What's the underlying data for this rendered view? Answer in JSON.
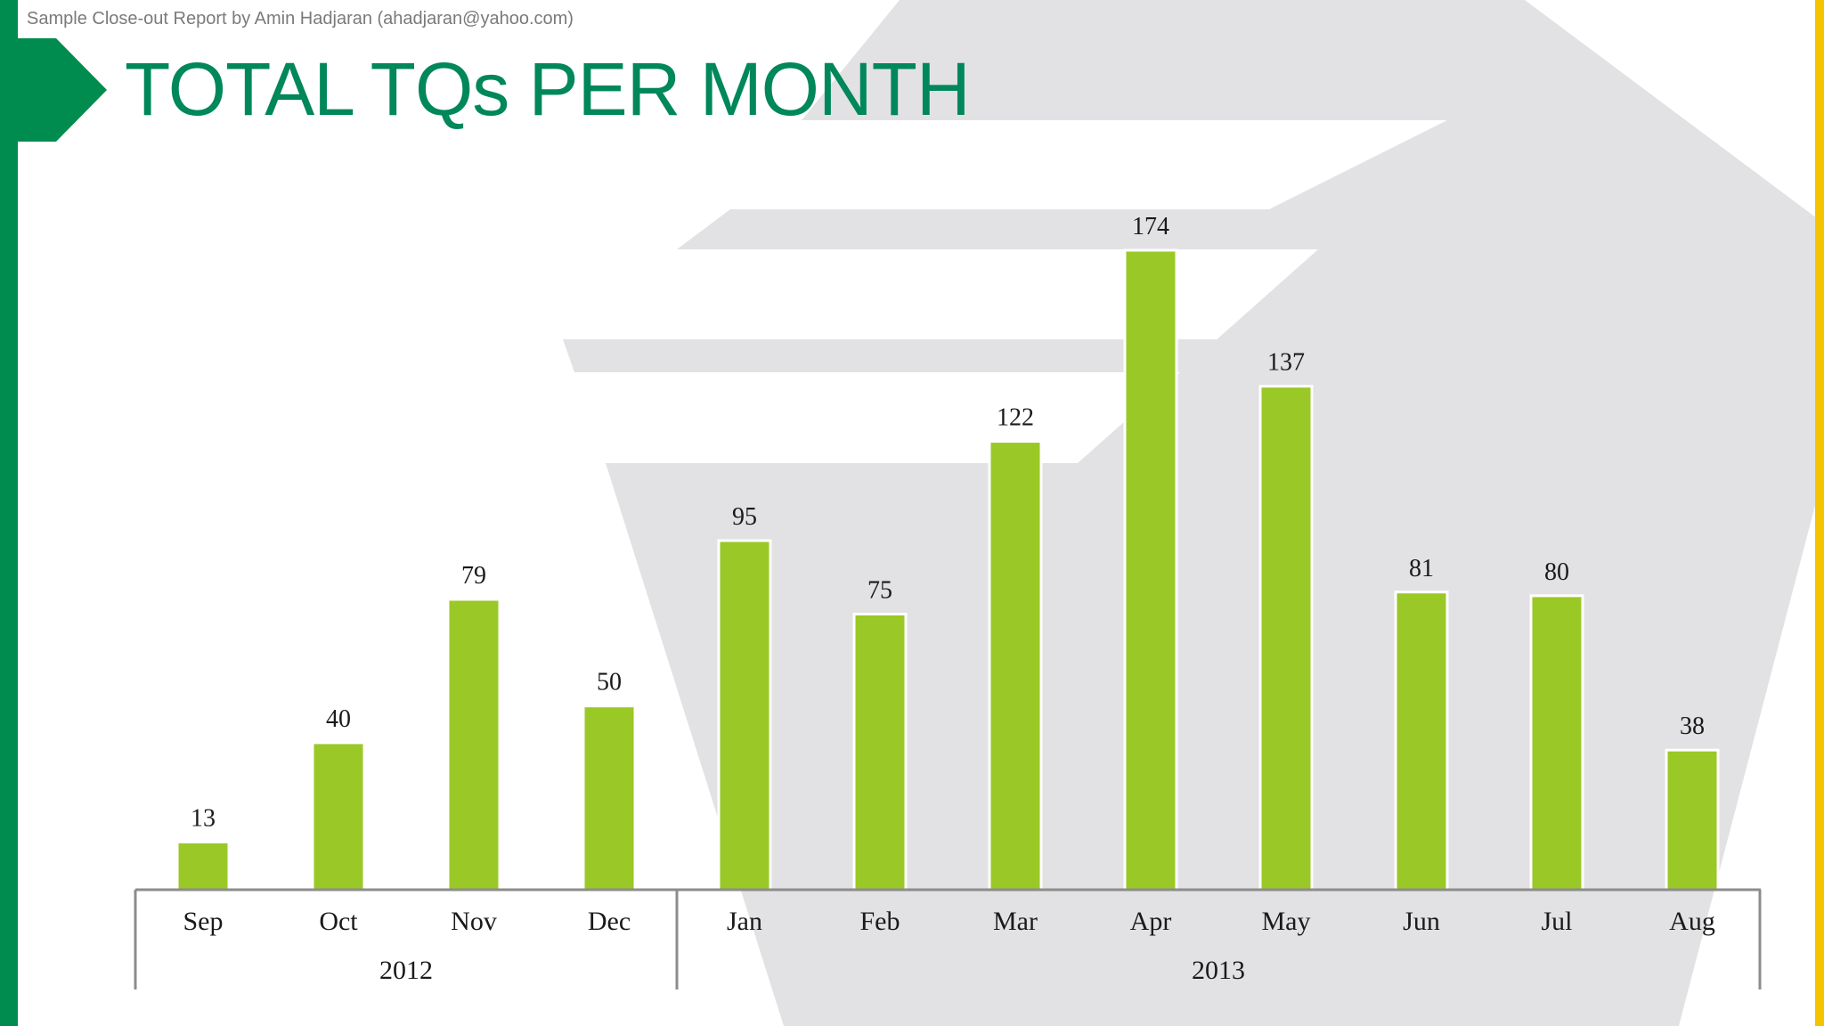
{
  "header": {
    "credit": "Sample Close-out Report by Amin Hadjaran (ahadjaran@yahoo.com)",
    "title": "TOTAL TQs PER MONTH"
  },
  "colors": {
    "accent_green": "#008c4f",
    "title_green": "#00875a",
    "bar_green": "#9ac826",
    "accent_yellow": "#f5c400",
    "background_shape": "#e2e2e4"
  },
  "chart_data": {
    "type": "bar",
    "title": "TOTAL TQs PER MONTH",
    "categories": [
      "Sep",
      "Oct",
      "Nov",
      "Dec",
      "Jan",
      "Feb",
      "Mar",
      "Apr",
      "May",
      "Jun",
      "Jul",
      "Aug"
    ],
    "values": [
      13,
      40,
      79,
      50,
      95,
      75,
      122,
      174,
      137,
      81,
      80,
      38
    ],
    "groups": [
      {
        "label": "2012",
        "categories": [
          "Sep",
          "Oct",
          "Nov",
          "Dec"
        ]
      },
      {
        "label": "2013",
        "categories": [
          "Jan",
          "Feb",
          "Mar",
          "Apr",
          "May",
          "Jun",
          "Jul",
          "Aug"
        ]
      }
    ],
    "xlabel": "",
    "ylabel": "",
    "ylim": [
      0,
      174
    ],
    "data_labels": true,
    "grid": false,
    "legend": "none"
  }
}
